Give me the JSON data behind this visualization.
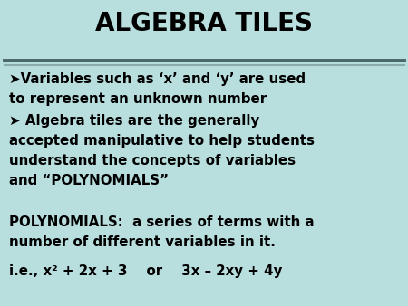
{
  "title": "ALGEBRA TILES",
  "bg_color": "#b8dede",
  "text_color": "#000000",
  "title_fontsize": 20,
  "body_fontsize": 10.8,
  "bullet1_line1": "➤Variables such as ‘x’ and ‘y’ are used",
  "bullet1_line2": "to represent an unknown number",
  "bullet2_line1": "➤ Algebra tiles are the generally",
  "bullet2_line2": "accepted manipulative to help students",
  "bullet2_line3": "understand the concepts of variables",
  "bullet2_line4": "and “POLYNOMIALS”",
  "poly_line1": "POLYNOMIALS:  a series of terms with a",
  "poly_line2": "number of different variables in it.",
  "example": "i.e., x² + 2x + 3    or    3x – 2xy + 4y",
  "sep_color_dark": "#5a7070",
  "sep_color_light": "#90b0b0"
}
